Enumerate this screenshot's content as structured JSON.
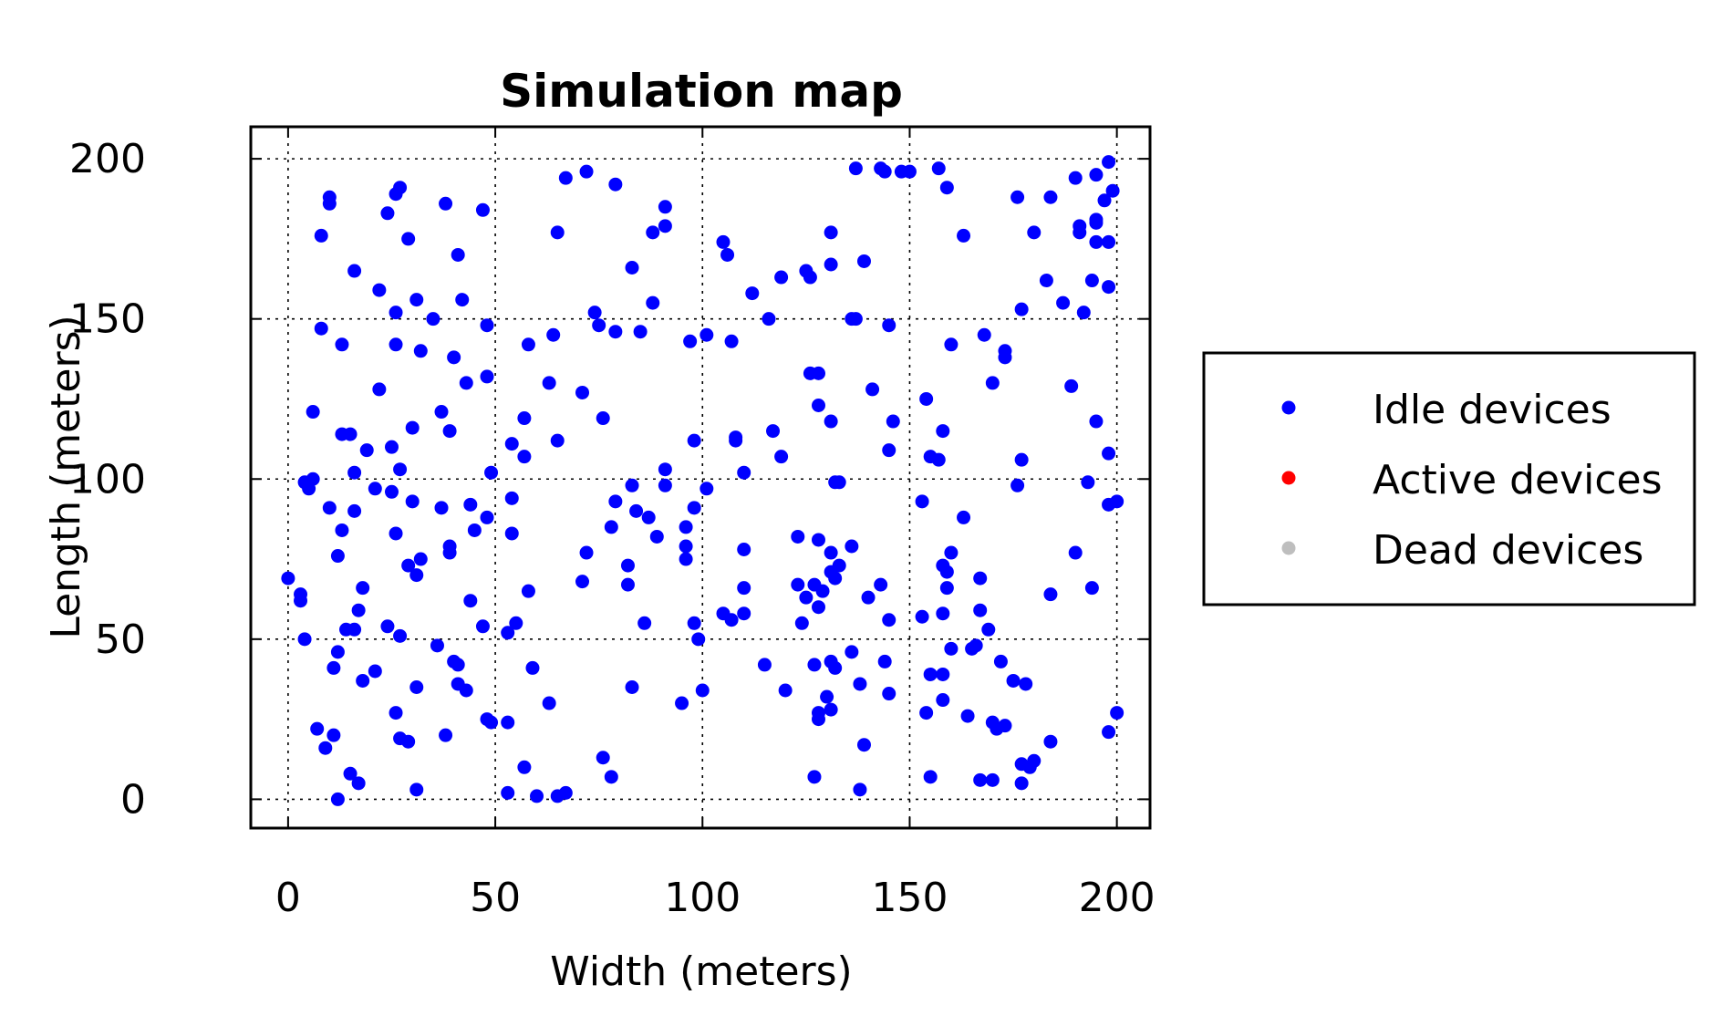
{
  "chart_data": {
    "type": "scatter",
    "title": "Simulation map",
    "xlabel": "Width (meters)",
    "ylabel": "Length (meters)",
    "xlim": [
      -9,
      208
    ],
    "ylim": [
      -9,
      210
    ],
    "xticks": [
      0,
      50,
      100,
      150,
      200
    ],
    "yticks": [
      0,
      50,
      100,
      150,
      200
    ],
    "grid": true,
    "legend_position": "right",
    "series": [
      {
        "name": "Idle devices",
        "color": "#0000ff",
        "points": [
          [
            10,
            188
          ],
          [
            10,
            186
          ],
          [
            27,
            191
          ],
          [
            26,
            189
          ],
          [
            38,
            186
          ],
          [
            47,
            184
          ],
          [
            24,
            183
          ],
          [
            8,
            176
          ],
          [
            29,
            175
          ],
          [
            16,
            165
          ],
          [
            41,
            170
          ],
          [
            22,
            159
          ],
          [
            31,
            156
          ],
          [
            42,
            156
          ],
          [
            26,
            152
          ],
          [
            35,
            150
          ],
          [
            48,
            148
          ],
          [
            8,
            147
          ],
          [
            26,
            142
          ],
          [
            13,
            142
          ],
          [
            32,
            140
          ],
          [
            40,
            138
          ],
          [
            22,
            128
          ],
          [
            43,
            130
          ],
          [
            48,
            132
          ],
          [
            6,
            121
          ],
          [
            37,
            121
          ],
          [
            30,
            116
          ],
          [
            39,
            115
          ],
          [
            13,
            114
          ],
          [
            15,
            114
          ],
          [
            25,
            110
          ],
          [
            19,
            109
          ],
          [
            4,
            99
          ],
          [
            6,
            100
          ],
          [
            5,
            97
          ],
          [
            27,
            103
          ],
          [
            16,
            102
          ],
          [
            21,
            97
          ],
          [
            25,
            96
          ],
          [
            10,
            91
          ],
          [
            16,
            90
          ],
          [
            30,
            93
          ],
          [
            37,
            91
          ],
          [
            44,
            92
          ],
          [
            48,
            88
          ],
          [
            13,
            84
          ],
          [
            26,
            83
          ],
          [
            39,
            79
          ],
          [
            39,
            77
          ],
          [
            45,
            84
          ],
          [
            12,
            76
          ],
          [
            29,
            73
          ],
          [
            31,
            70
          ],
          [
            32,
            75
          ],
          [
            0,
            69
          ],
          [
            3,
            64
          ],
          [
            3,
            62
          ],
          [
            18,
            66
          ],
          [
            17,
            59
          ],
          [
            14,
            53
          ],
          [
            16,
            53
          ],
          [
            24,
            54
          ],
          [
            27,
            51
          ],
          [
            44,
            62
          ],
          [
            47,
            54
          ],
          [
            4,
            50
          ],
          [
            12,
            46
          ],
          [
            11,
            41
          ],
          [
            18,
            37
          ],
          [
            21,
            40
          ],
          [
            36,
            48
          ],
          [
            40,
            43
          ],
          [
            41,
            42
          ],
          [
            41,
            36
          ],
          [
            43,
            34
          ],
          [
            31,
            35
          ],
          [
            26,
            27
          ],
          [
            27,
            19
          ],
          [
            29,
            18
          ],
          [
            38,
            20
          ],
          [
            48,
            25
          ],
          [
            7,
            22
          ],
          [
            9,
            16
          ],
          [
            11,
            20
          ],
          [
            15,
            8
          ],
          [
            17,
            5
          ],
          [
            12,
            0
          ],
          [
            31,
            3
          ],
          [
            67,
            194
          ],
          [
            72,
            196
          ],
          [
            79,
            192
          ],
          [
            91,
            185
          ],
          [
            91,
            179
          ],
          [
            88,
            177
          ],
          [
            65,
            177
          ],
          [
            83,
            166
          ],
          [
            74,
            152
          ],
          [
            75,
            148
          ],
          [
            79,
            146
          ],
          [
            85,
            146
          ],
          [
            88,
            155
          ],
          [
            97,
            143
          ],
          [
            64,
            145
          ],
          [
            58,
            142
          ],
          [
            63,
            130
          ],
          [
            71,
            127
          ],
          [
            76,
            119
          ],
          [
            57,
            119
          ],
          [
            54,
            111
          ],
          [
            57,
            107
          ],
          [
            65,
            112
          ],
          [
            98,
            112
          ],
          [
            91,
            103
          ],
          [
            91,
            98
          ],
          [
            83,
            98
          ],
          [
            84,
            90
          ],
          [
            87,
            88
          ],
          [
            79,
            93
          ],
          [
            78,
            85
          ],
          [
            89,
            82
          ],
          [
            96,
            85
          ],
          [
            96,
            79
          ],
          [
            96,
            75
          ],
          [
            98,
            91
          ],
          [
            72,
            77
          ],
          [
            71,
            68
          ],
          [
            82,
            73
          ],
          [
            82,
            67
          ],
          [
            86,
            55
          ],
          [
            98,
            55
          ],
          [
            99,
            50
          ],
          [
            54,
            94
          ],
          [
            54,
            83
          ],
          [
            49,
            102
          ],
          [
            53,
            52
          ],
          [
            55,
            55
          ],
          [
            58,
            65
          ],
          [
            59,
            41
          ],
          [
            63,
            30
          ],
          [
            57,
            10
          ],
          [
            53,
            24
          ],
          [
            49,
            24
          ],
          [
            53,
            2
          ],
          [
            60,
            1
          ],
          [
            65,
            1
          ],
          [
            67,
            2
          ],
          [
            76,
            13
          ],
          [
            78,
            7
          ],
          [
            83,
            35
          ],
          [
            95,
            30
          ],
          [
            100,
            34
          ],
          [
            105,
            174
          ],
          [
            106,
            170
          ],
          [
            101,
            145
          ],
          [
            107,
            143
          ],
          [
            112,
            158
          ],
          [
            116,
            150
          ],
          [
            119,
            163
          ],
          [
            125,
            165
          ],
          [
            126,
            163
          ],
          [
            131,
            177
          ],
          [
            131,
            167
          ],
          [
            137,
            197
          ],
          [
            143,
            197
          ],
          [
            144,
            196
          ],
          [
            148,
            196
          ],
          [
            150,
            196
          ],
          [
            157,
            197
          ],
          [
            159,
            191
          ],
          [
            139,
            168
          ],
          [
            136,
            150
          ],
          [
            137,
            150
          ],
          [
            145,
            148
          ],
          [
            163,
            176
          ],
          [
            160,
            142
          ],
          [
            126,
            133
          ],
          [
            128,
            133
          ],
          [
            128,
            123
          ],
          [
            131,
            118
          ],
          [
            141,
            128
          ],
          [
            146,
            118
          ],
          [
            145,
            109
          ],
          [
            154,
            125
          ],
          [
            117,
            115
          ],
          [
            108,
            113
          ],
          [
            108,
            112
          ],
          [
            110,
            102
          ],
          [
            119,
            107
          ],
          [
            101,
            97
          ],
          [
            132,
            99
          ],
          [
            133,
            99
          ],
          [
            155,
            107
          ],
          [
            157,
            106
          ],
          [
            158,
            115
          ],
          [
            153,
            93
          ],
          [
            163,
            88
          ],
          [
            123,
            82
          ],
          [
            128,
            81
          ],
          [
            131,
            77
          ],
          [
            131,
            71
          ],
          [
            133,
            73
          ],
          [
            132,
            69
          ],
          [
            136,
            79
          ],
          [
            127,
            67
          ],
          [
            129,
            65
          ],
          [
            128,
            60
          ],
          [
            124,
            55
          ],
          [
            125,
            63
          ],
          [
            110,
            78
          ],
          [
            110,
            66
          ],
          [
            110,
            58
          ],
          [
            105,
            58
          ],
          [
            107,
            56
          ],
          [
            123,
            67
          ],
          [
            140,
            63
          ],
          [
            143,
            67
          ],
          [
            145,
            56
          ],
          [
            153,
            57
          ],
          [
            158,
            73
          ],
          [
            159,
            66
          ],
          [
            160,
            77
          ],
          [
            159,
            71
          ],
          [
            158,
            58
          ],
          [
            160,
            47
          ],
          [
            165,
            47
          ],
          [
            166,
            48
          ],
          [
            115,
            42
          ],
          [
            120,
            34
          ],
          [
            127,
            42
          ],
          [
            127,
            7
          ],
          [
            128,
            27
          ],
          [
            128,
            25
          ],
          [
            130,
            32
          ],
          [
            131,
            43
          ],
          [
            132,
            41
          ],
          [
            131,
            28
          ],
          [
            136,
            46
          ],
          [
            138,
            36
          ],
          [
            138,
            3
          ],
          [
            139,
            17
          ],
          [
            144,
            43
          ],
          [
            145,
            33
          ],
          [
            154,
            27
          ],
          [
            155,
            7
          ],
          [
            155,
            39
          ],
          [
            158,
            39
          ],
          [
            158,
            31
          ],
          [
            164,
            26
          ],
          [
            176,
            188
          ],
          [
            180,
            177
          ],
          [
            184,
            188
          ],
          [
            190,
            194
          ],
          [
            191,
            179
          ],
          [
            191,
            177
          ],
          [
            195,
            180
          ],
          [
            195,
            181
          ],
          [
            195,
            195
          ],
          [
            197,
            187
          ],
          [
            198,
            199
          ],
          [
            199,
            190
          ],
          [
            195,
            174
          ],
          [
            198,
            174
          ],
          [
            194,
            162
          ],
          [
            198,
            160
          ],
          [
            183,
            162
          ],
          [
            187,
            155
          ],
          [
            192,
            152
          ],
          [
            177,
            153
          ],
          [
            168,
            145
          ],
          [
            173,
            140
          ],
          [
            173,
            138
          ],
          [
            170,
            130
          ],
          [
            189,
            129
          ],
          [
            195,
            118
          ],
          [
            177,
            106
          ],
          [
            176,
            98
          ],
          [
            193,
            99
          ],
          [
            198,
            108
          ],
          [
            198,
            92
          ],
          [
            200,
            93
          ],
          [
            190,
            77
          ],
          [
            194,
            66
          ],
          [
            184,
            64
          ],
          [
            167,
            69
          ],
          [
            167,
            59
          ],
          [
            169,
            53
          ],
          [
            172,
            43
          ],
          [
            175,
            37
          ],
          [
            178,
            36
          ],
          [
            170,
            24
          ],
          [
            171,
            22
          ],
          [
            173,
            23
          ],
          [
            177,
            11
          ],
          [
            177,
            5
          ],
          [
            179,
            10
          ],
          [
            180,
            12
          ],
          [
            184,
            18
          ],
          [
            167,
            6
          ],
          [
            170,
            6
          ],
          [
            198,
            21
          ],
          [
            200,
            27
          ]
        ]
      },
      {
        "name": "Active devices",
        "color": "#ff0000",
        "points": []
      },
      {
        "name": "Dead devices",
        "color": "#bebebe",
        "points": []
      }
    ]
  }
}
